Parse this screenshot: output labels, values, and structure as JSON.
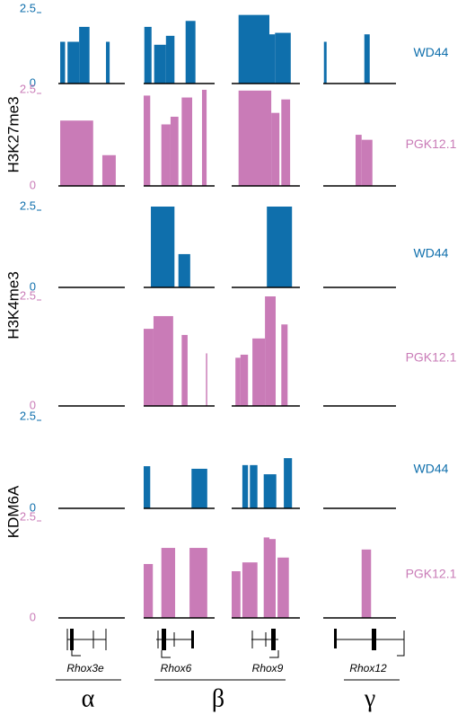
{
  "chart_data": [
    {
      "type": "histogram",
      "group": "H3K27me3",
      "series_name": "WD44",
      "color": "#0f6fac",
      "xlim": [
        0,
        100
      ],
      "ylim": [
        0,
        2.5
      ],
      "yticks": [
        0,
        2.5
      ],
      "panels": [
        {
          "bins": [
            3,
            11,
            15,
            34,
            51,
            78,
            84
          ],
          "values": [
            1.4,
            0,
            1.4,
            1.9,
            0,
            1.4
          ]
        },
        {
          "bins": [
            1,
            12,
            16,
            34,
            47,
            64,
            79
          ],
          "values": [
            1.9,
            0,
            1.3,
            1.6,
            0,
            2.1
          ]
        },
        {
          "bins": [
            11,
            60,
            69,
            94
          ],
          "values": [
            2.3,
            1.65,
            1.7
          ]
        },
        {
          "bins": [
            1,
            5,
            61,
            69
          ],
          "values": [
            1.4,
            0,
            1.65
          ]
        }
      ]
    },
    {
      "type": "histogram",
      "series_name": "PGK12.1",
      "color": "#c97bb7",
      "xlim": [
        0,
        100
      ],
      "ylim": [
        0,
        2.5
      ],
      "yticks": [
        0,
        2.5
      ],
      "panels": [
        {
          "bins": [
            3,
            57,
            72,
            94
          ],
          "values": [
            1.7,
            0,
            0.8
          ]
        },
        {
          "bins": [
            0,
            10,
            27,
            41,
            53,
            58,
            74,
            89,
            96
          ],
          "values": [
            2.35,
            0,
            1.6,
            1.8,
            0,
            2.3,
            0,
            2.5
          ]
        },
        {
          "bins": [
            11,
            63,
            76,
            79,
            93
          ],
          "values": [
            2.48,
            1.9,
            0,
            2.25
          ]
        },
        {
          "bins": [
            48,
            57,
            73
          ],
          "values": [
            1.33,
            1.2
          ]
        }
      ]
    },
    {
      "type": "histogram",
      "group": "H3K4me3",
      "series_name": "WD44",
      "color": "#0f6fac",
      "xlim": [
        0,
        100
      ],
      "ylim": [
        0,
        2.5
      ],
      "yticks": [
        0,
        2.5
      ],
      "panels": [
        {
          "bins": [
            0,
            100
          ],
          "values": [
            0
          ]
        },
        {
          "bins": [
            11,
            47,
            53,
            71
          ],
          "values": [
            2.5,
            0,
            1.03
          ]
        },
        {
          "bins": [
            56,
            96
          ],
          "values": [
            2.5
          ]
        },
        {
          "bins": [
            0,
            100
          ],
          "values": [
            0
          ]
        }
      ]
    },
    {
      "type": "histogram",
      "series_name": "PGK12.1",
      "color": "#c97bb7",
      "xlim": [
        0,
        100
      ],
      "ylim": [
        0,
        2.5
      ],
      "yticks": [
        0,
        2.5
      ],
      "panels": [
        {
          "bins": [
            0,
            100
          ],
          "values": [
            0
          ]
        },
        {
          "bins": [
            0,
            15,
            45,
            58,
            67,
            95,
            97
          ],
          "values": [
            1.76,
            2.05,
            0,
            1.62,
            0,
            1.2
          ]
        },
        {
          "bins": [
            6,
            14,
            26,
            33,
            53,
            70,
            79,
            89
          ],
          "values": [
            1.1,
            1.17,
            0,
            1.54,
            2.5,
            0,
            1.86
          ]
        },
        {
          "bins": [
            0,
            100
          ],
          "values": [
            0
          ]
        }
      ]
    },
    {
      "type": "histogram",
      "group": "KDM6A",
      "series_name": "WD44",
      "color": "#0f6fac",
      "xlim": [
        0,
        100
      ],
      "ylim": [
        0,
        2.5
      ],
      "yticks": [
        0,
        2.5
      ],
      "panels": [
        {
          "bins": [
            0,
            100
          ],
          "values": [
            0
          ]
        },
        {
          "bins": [
            0,
            10,
            73,
            97
          ],
          "values": [
            1.15,
            0,
            1.08
          ]
        },
        {
          "bins": [
            17,
            26,
            29,
            41,
            51,
            71,
            83,
            96
          ],
          "values": [
            1.18,
            0,
            1.18,
            0,
            0.93,
            0,
            1.37
          ]
        },
        {
          "bins": [
            0,
            100
          ],
          "values": [
            0
          ]
        }
      ]
    },
    {
      "type": "histogram",
      "series_name": "PGK12.1",
      "color": "#c97bb7",
      "xlim": [
        0,
        100
      ],
      "ylim": [
        0,
        2.5
      ],
      "yticks": [
        0,
        2.5
      ],
      "panels": [
        {
          "bins": [
            0,
            100
          ],
          "values": [
            0
          ]
        },
        {
          "bins": [
            0,
            14,
            27,
            48,
            70,
            97
          ],
          "values": [
            1.34,
            0,
            1.74,
            0,
            1.74
          ]
        },
        {
          "bins": [
            0,
            14,
            17,
            41,
            51,
            60,
            70,
            73,
            91
          ],
          "values": [
            1.16,
            0,
            1.38,
            0,
            2.0,
            1.96,
            0,
            1.5
          ]
        },
        {
          "bins": [
            57,
            71
          ],
          "values": [
            1.7
          ]
        }
      ]
    }
  ],
  "loci": {
    "genes": [
      "Rhox3e",
      "Rhox6",
      "Rhox9",
      "Rhox12"
    ],
    "clusters": [
      "α",
      "β",
      "γ"
    ]
  }
}
